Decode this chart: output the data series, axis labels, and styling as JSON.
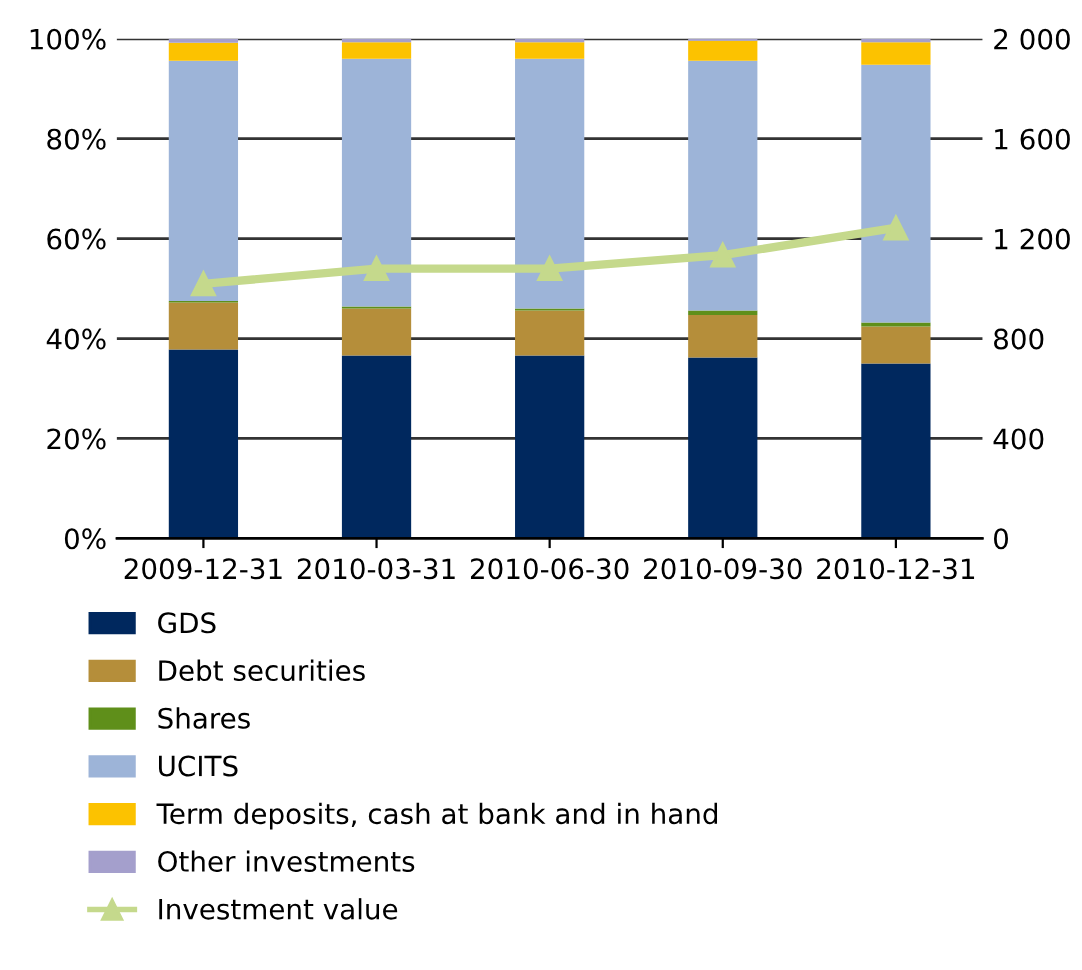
{
  "chart_data": {
    "type": "bar",
    "stacked": true,
    "categories": [
      "2009-12-31",
      "2010-03-31",
      "2010-06-30",
      "2010-09-30",
      "2010-12-31"
    ],
    "series": [
      {
        "name": "GDS",
        "color": "#00285e",
        "values": [
          37.8,
          36.6,
          36.6,
          36.2,
          35.0
        ]
      },
      {
        "name": "Debt securities",
        "color": "#b58e3a",
        "values": [
          9.4,
          9.4,
          9.0,
          8.5,
          7.4
        ]
      },
      {
        "name": "Shares",
        "color": "#5f8f1a",
        "values": [
          0.3,
          0.4,
          0.4,
          0.9,
          0.8
        ]
      },
      {
        "name": "UCITS",
        "color": "#9db4d8",
        "values": [
          48.1,
          49.6,
          50.0,
          50.0,
          51.6
        ]
      },
      {
        "name": "Term deposits, cash at bank and in hand",
        "color": "#fcc200",
        "values": [
          3.6,
          3.3,
          3.3,
          4.0,
          4.5
        ]
      },
      {
        "name": "Other investments",
        "color": "#a49fcc",
        "values": [
          0.8,
          0.7,
          0.7,
          0.4,
          0.7
        ]
      },
      {
        "name": "Investment value",
        "type": "line",
        "axis": "y2",
        "color": "#c5d98c",
        "marker": "triangle",
        "values": [
          1019,
          1080,
          1080,
          1134,
          1243
        ]
      }
    ],
    "ylim": [
      0,
      100
    ],
    "yticks": [
      {
        "value": 0,
        "label": "0%"
      },
      {
        "value": 20,
        "label": "20%"
      },
      {
        "value": 40,
        "label": "40%"
      },
      {
        "value": 60,
        "label": "60%"
      },
      {
        "value": 80,
        "label": "80%"
      },
      {
        "value": 100,
        "label": "100%"
      }
    ],
    "y2lim": [
      0,
      2000
    ],
    "y2ticks": [
      0,
      400,
      800,
      {
        "value": 1200,
        "label": "1 200"
      },
      {
        "value": 1600,
        "label": "1 600"
      },
      {
        "value": 2000,
        "label": "2 000"
      }
    ],
    "grid": "y",
    "legend": "bottom"
  }
}
